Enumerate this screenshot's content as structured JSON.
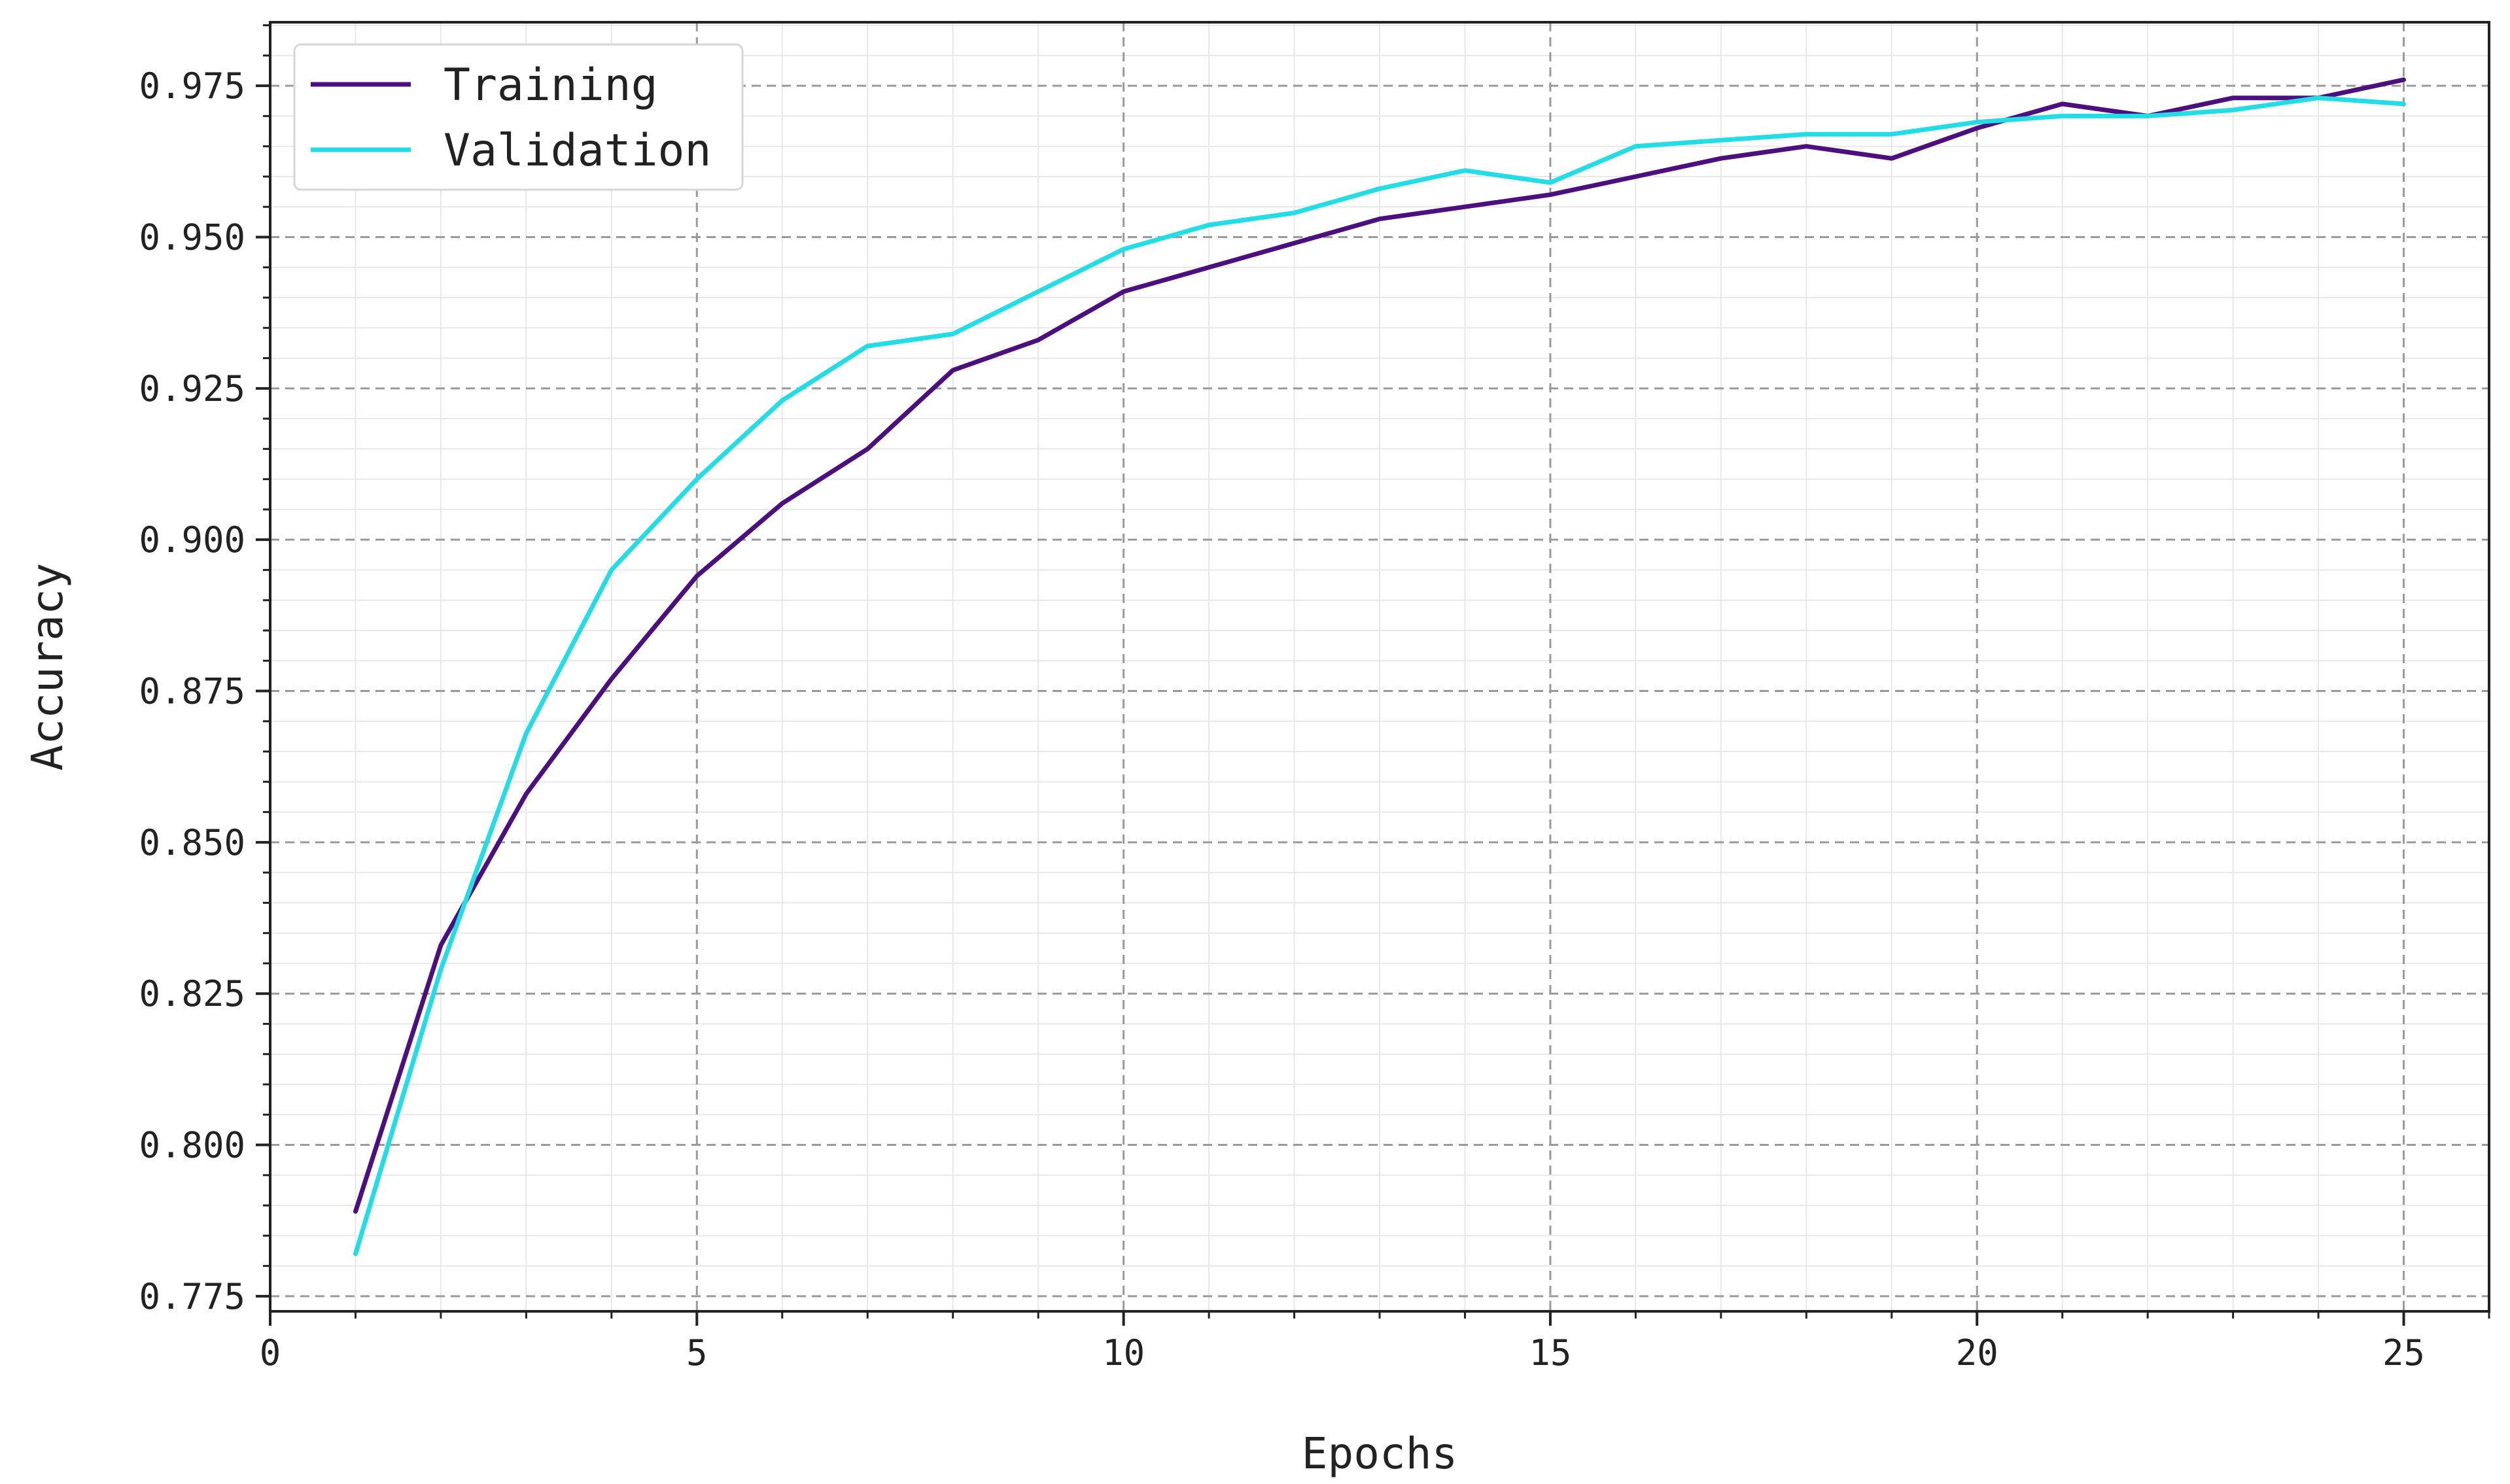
{
  "chart_data": {
    "type": "line",
    "title": "",
    "xlabel": "Epochs",
    "ylabel": "Accuracy",
    "xlim": [
      0,
      26
    ],
    "ylim": [
      0.7725,
      0.9855
    ],
    "x_ticks": [
      0,
      5,
      10,
      15,
      20,
      25
    ],
    "x_tick_labels": [
      "0",
      "5",
      "10",
      "15",
      "20",
      "25"
    ],
    "y_ticks": [
      0.775,
      0.8,
      0.825,
      0.85,
      0.875,
      0.9,
      0.925,
      0.95,
      0.975
    ],
    "y_tick_labels": [
      "0.775",
      "0.800",
      "0.825",
      "0.850",
      "0.875",
      "0.900",
      "0.925",
      "0.950",
      "0.975"
    ],
    "grid": true,
    "legend_position": "top-left",
    "x": [
      1,
      2,
      3,
      4,
      5,
      6,
      7,
      8,
      9,
      10,
      11,
      12,
      13,
      14,
      15,
      16,
      17,
      18,
      19,
      20,
      21,
      22,
      23,
      24,
      25
    ],
    "series": [
      {
        "name": "Training",
        "color": "#4b0f7e",
        "values": [
          0.789,
          0.833,
          0.858,
          0.877,
          0.894,
          0.906,
          0.915,
          0.928,
          0.933,
          0.941,
          0.945,
          0.949,
          0.953,
          0.955,
          0.957,
          0.96,
          0.963,
          0.965,
          0.963,
          0.968,
          0.972,
          0.97,
          0.973,
          0.973,
          0.976
        ]
      },
      {
        "name": "Validation",
        "color": "#22dde6",
        "values": [
          0.782,
          0.829,
          0.868,
          0.895,
          0.91,
          0.923,
          0.932,
          0.934,
          0.941,
          0.948,
          0.952,
          0.954,
          0.958,
          0.961,
          0.959,
          0.965,
          0.966,
          0.967,
          0.967,
          0.969,
          0.97,
          0.97,
          0.971,
          0.973,
          0.972
        ]
      }
    ]
  }
}
